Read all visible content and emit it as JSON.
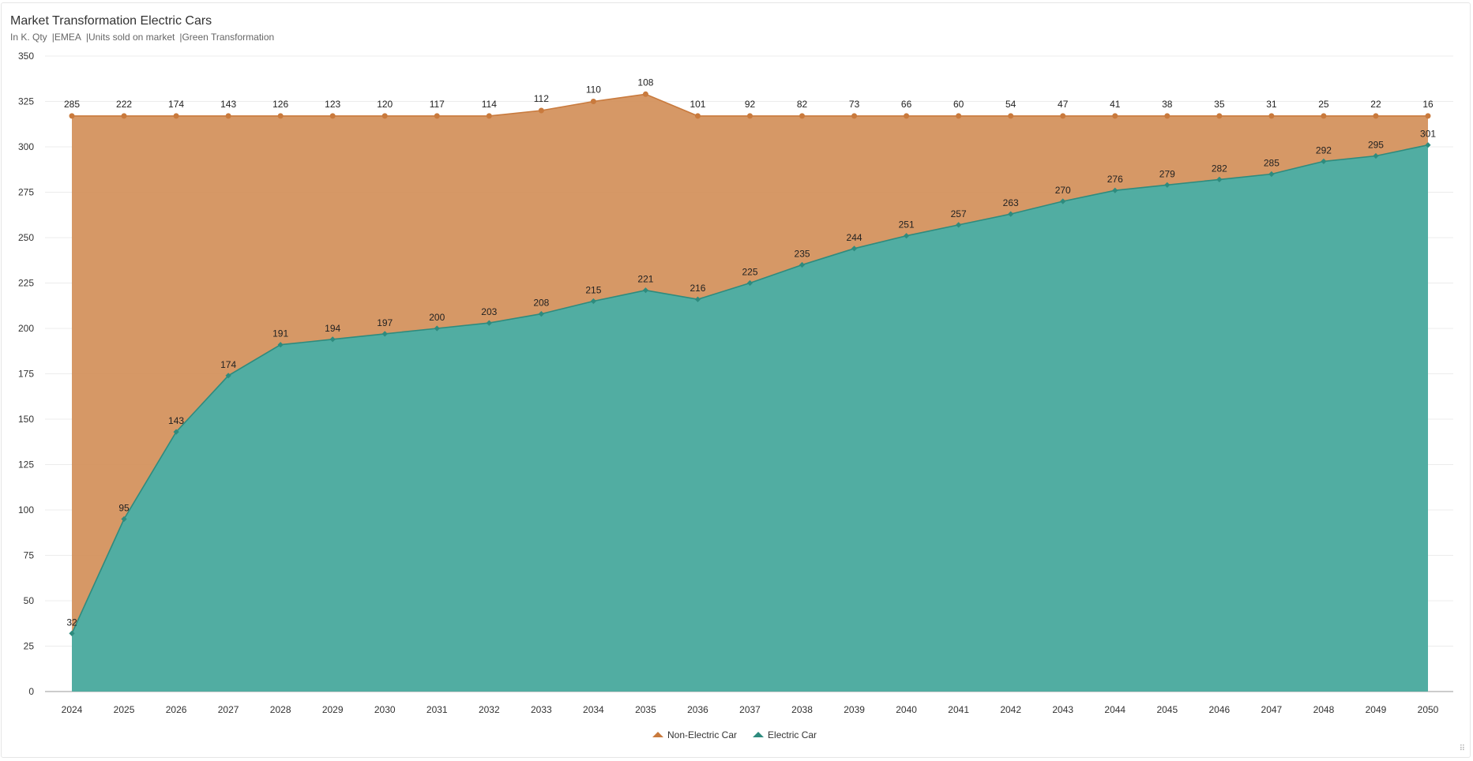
{
  "header": {
    "title": "Market Transformation Electric Cars",
    "subtitle_parts": [
      "In K. Qty",
      "EMEA",
      "Units sold on market",
      "Green Transformation"
    ]
  },
  "chart_data": {
    "type": "area",
    "stacked": true,
    "title": "Market Transformation Electric Cars",
    "x": [
      "2024",
      "2025",
      "2026",
      "2027",
      "2028",
      "2029",
      "2030",
      "2031",
      "2032",
      "2033",
      "2034",
      "2035",
      "2036",
      "2037",
      "2038",
      "2039",
      "2040",
      "2041",
      "2042",
      "2043",
      "2044",
      "2045",
      "2046",
      "2047",
      "2048",
      "2049",
      "2050"
    ],
    "ylim": [
      0,
      350
    ],
    "yticks": [
      0,
      25,
      50,
      75,
      100,
      125,
      150,
      175,
      200,
      225,
      250,
      275,
      300,
      325,
      350
    ],
    "grid": true,
    "legend_position": "bottom-center",
    "series": [
      {
        "name": "Non-Electric Car",
        "color": "#d4925e",
        "line_color": "#c97a3d",
        "values": [
          285,
          222,
          174,
          143,
          126,
          123,
          120,
          117,
          114,
          112,
          110,
          108,
          101,
          92,
          82,
          73,
          66,
          60,
          54,
          47,
          41,
          38,
          35,
          31,
          25,
          22,
          16
        ]
      },
      {
        "name": "Electric Car",
        "color": "#4eaba0",
        "line_color": "#2e8b7e",
        "values": [
          32,
          95,
          143,
          174,
          191,
          194,
          197,
          200,
          203,
          208,
          215,
          221,
          216,
          225,
          235,
          244,
          251,
          257,
          263,
          270,
          276,
          279,
          282,
          285,
          292,
          295,
          301
        ]
      }
    ]
  }
}
